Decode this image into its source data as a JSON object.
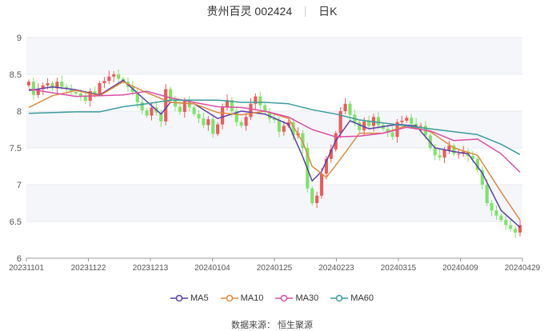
{
  "header": {
    "stock": "贵州百灵 002424",
    "period": "日K"
  },
  "source": "数据来源：  恒生聚源",
  "colors": {
    "up": "#ee5a5a",
    "down": "#7ee36a",
    "grid": "#e6e8ee",
    "band": "#f5f6fa",
    "ma5": "#5b3fa6",
    "ma10": "#e08a3c",
    "ma30": "#d94fa0",
    "ma60": "#3c9a9a"
  },
  "chart_data": {
    "type": "candlestick",
    "title": "贵州百灵 002424 日K",
    "ylim": [
      6,
      9
    ],
    "y_ticks": [
      "6",
      "6.5",
      "7",
      "7.5",
      "8",
      "8.5",
      "9"
    ],
    "x_tick_labels": [
      "20231101",
      "20231122",
      "20231213",
      "20240104",
      "20240125",
      "20240223",
      "20240315",
      "20240409",
      "20240429"
    ],
    "grid": true,
    "legend_position": "bottom",
    "close": [
      8.4,
      8.22,
      8.3,
      8.35,
      8.38,
      8.31,
      8.4,
      8.33,
      8.3,
      8.26,
      8.24,
      8.2,
      8.14,
      8.27,
      8.23,
      8.38,
      8.41,
      8.47,
      8.5,
      8.44,
      8.4,
      8.33,
      8.26,
      8.12,
      8.01,
      7.94,
      8.05,
      7.98,
      7.86,
      8.3,
      8.15,
      8.06,
      7.99,
      8.14,
      8.05,
      7.96,
      7.9,
      7.81,
      7.89,
      7.69,
      7.82,
      8.05,
      8.15,
      8.0,
      7.85,
      7.8,
      7.92,
      8.1,
      8.2,
      8.08,
      7.99,
      7.9,
      7.88,
      7.72,
      7.8,
      7.85,
      7.67,
      7.7,
      7.5,
      6.95,
      6.75,
      6.85,
      7.15,
      7.35,
      7.48,
      7.7,
      8.0,
      8.1,
      7.95,
      7.85,
      7.74,
      7.86,
      7.8,
      7.92,
      7.81,
      7.76,
      7.71,
      7.65,
      7.85,
      7.87,
      7.91,
      7.83,
      7.79,
      7.8,
      7.67,
      7.5,
      7.4,
      7.37,
      7.47,
      7.53,
      7.42,
      7.42,
      7.45,
      7.39,
      7.35,
      7.2,
      7.0,
      6.75,
      6.65,
      6.58,
      6.52,
      6.45,
      6.4,
      6.35,
      6.45
    ],
    "series": [
      {
        "name": "MA5",
        "x": [
          0,
          5,
          10,
          15,
          20,
          25,
          28,
          30,
          35,
          40,
          45,
          50,
          55,
          58,
          60,
          62,
          65,
          68,
          72,
          78,
          82,
          86,
          90,
          93,
          96,
          100,
          104
        ],
        "values": [
          8.28,
          8.33,
          8.29,
          8.22,
          8.42,
          8.13,
          7.96,
          8.12,
          8.1,
          7.9,
          8.0,
          7.96,
          7.82,
          7.38,
          7.05,
          7.18,
          7.6,
          7.87,
          7.76,
          7.82,
          7.8,
          7.5,
          7.45,
          7.42,
          7.16,
          6.65,
          6.42
        ]
      },
      {
        "name": "MA10",
        "x": [
          0,
          5,
          10,
          15,
          20,
          25,
          30,
          35,
          40,
          45,
          50,
          55,
          58,
          60,
          63,
          66,
          70,
          75,
          80,
          85,
          90,
          95,
          100,
          104
        ],
        "values": [
          8.05,
          8.21,
          8.28,
          8.21,
          8.4,
          8.25,
          8.12,
          8.1,
          7.98,
          7.95,
          8.0,
          7.9,
          7.58,
          7.25,
          7.1,
          7.35,
          7.7,
          7.7,
          7.8,
          7.72,
          7.5,
          7.4,
          6.9,
          6.52
        ]
      },
      {
        "name": "MA30",
        "x": [
          0,
          10,
          20,
          25,
          30,
          35,
          40,
          45,
          50,
          55,
          60,
          65,
          70,
          75,
          80,
          85,
          90,
          95,
          100,
          104
        ],
        "values": [
          8.3,
          8.2,
          8.22,
          8.27,
          8.18,
          8.12,
          8.06,
          8.05,
          8.0,
          7.92,
          7.75,
          7.65,
          7.66,
          7.7,
          7.78,
          7.73,
          7.6,
          7.62,
          7.42,
          7.17
        ]
      },
      {
        "name": "MA60",
        "x": [
          0,
          10,
          15,
          20,
          25,
          30,
          40,
          45,
          50,
          55,
          60,
          65,
          70,
          75,
          80,
          85,
          90,
          95,
          100,
          104
        ],
        "values": [
          7.97,
          7.99,
          7.99,
          8.06,
          8.1,
          8.15,
          8.15,
          8.12,
          8.12,
          8.1,
          8.02,
          7.96,
          7.88,
          7.84,
          7.8,
          7.76,
          7.72,
          7.68,
          7.55,
          7.41
        ]
      }
    ]
  }
}
